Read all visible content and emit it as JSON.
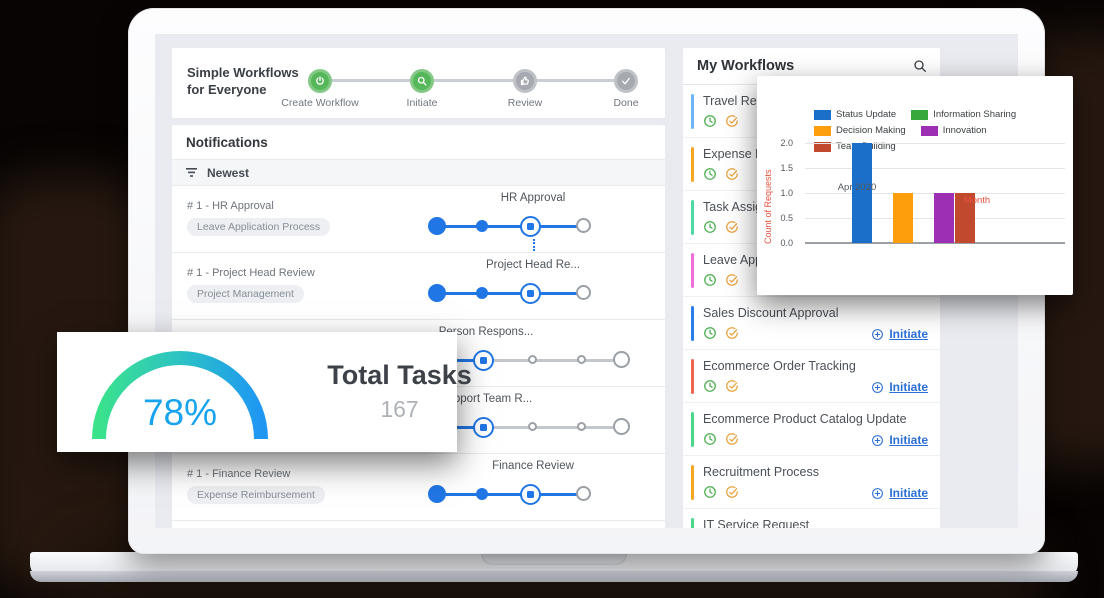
{
  "stepper_card": {
    "title": "Simple Workflows for Everyone",
    "steps": [
      {
        "label": "Create Workflow",
        "state": "done",
        "icon": "power-icon"
      },
      {
        "label": "Initiate",
        "state": "done",
        "icon": "search-icon"
      },
      {
        "label": "Review",
        "state": "pending",
        "icon": "thumbs-up-icon"
      },
      {
        "label": "Done",
        "state": "pending",
        "icon": "check-icon"
      }
    ]
  },
  "notifications": {
    "title": "Notifications",
    "sort_label": "Newest",
    "rows": [
      {
        "ref": "# 1 - HR Approval",
        "tag": "Leave Application Process",
        "step_label": "HR Approval",
        "variant": "A",
        "dots": true
      },
      {
        "ref": "# 1 - Project Head Review",
        "tag": "Project Management",
        "step_label": "Project Head Re...",
        "variant": "A",
        "dots": false
      },
      {
        "ref": "",
        "tag": "",
        "step_label": "Person Respons...",
        "variant": "B",
        "dots": false
      },
      {
        "ref": "",
        "tag": "",
        "step_label": "Support Team R...",
        "variant": "B",
        "dots": false
      },
      {
        "ref": "# 1 - Finance Review",
        "tag": "Expense Reimbursement",
        "step_label": "Finance Review",
        "variant": "A",
        "dots": false
      }
    ]
  },
  "workflows_panel": {
    "title": "My Workflows",
    "initiate_label": "Initiate",
    "items": [
      {
        "title": "Travel Requ",
        "bar_color": "#6cb6f5",
        "show_initiate": false
      },
      {
        "title": "Expense Re",
        "bar_color": "#f5a623",
        "show_initiate": false
      },
      {
        "title": "Task Assign",
        "bar_color": "#4dd9a6",
        "show_initiate": false
      },
      {
        "title": "Leave Appli",
        "bar_color": "#f06fd8",
        "show_initiate": false
      },
      {
        "title": "Sales Discount Approval",
        "bar_color": "#2b7de9",
        "show_initiate": true
      },
      {
        "title": "Ecommerce Order Tracking",
        "bar_color": "#f0674e",
        "show_initiate": true
      },
      {
        "title": "Ecommerce Product Catalog Update",
        "bar_color": "#4cd88a",
        "show_initiate": true
      },
      {
        "title": "Recruitment Process",
        "bar_color": "#f5a623",
        "show_initiate": true
      },
      {
        "title": "IT Service Request",
        "bar_color": "#4cd88a",
        "show_initiate": false
      }
    ]
  },
  "chart_data": {
    "type": "bar",
    "categories": [
      "Apr 2020"
    ],
    "series": [
      {
        "name": "Status Update",
        "color": "#1c6fc9",
        "values": [
          2
        ]
      },
      {
        "name": "Information Sharing",
        "color": "#37a93c",
        "values": [
          0
        ]
      },
      {
        "name": "Decision Making",
        "color": "#ff9e0d",
        "values": [
          1
        ]
      },
      {
        "name": "Innovation",
        "color": "#9d2fb5",
        "values": [
          1
        ]
      },
      {
        "name": "Team Building",
        "color": "#c14a2e",
        "values": [
          1
        ]
      }
    ],
    "xlabel": "Month",
    "ylabel": "Count of Requests",
    "yticks": [
      "2.0",
      "1.5",
      "1.0",
      "0.5",
      "0.0"
    ],
    "ylim": [
      0,
      2
    ],
    "grid": true,
    "legend_position": "top"
  },
  "total_tasks": {
    "percent": "78%",
    "title": "Total Tasks",
    "count": "167"
  }
}
